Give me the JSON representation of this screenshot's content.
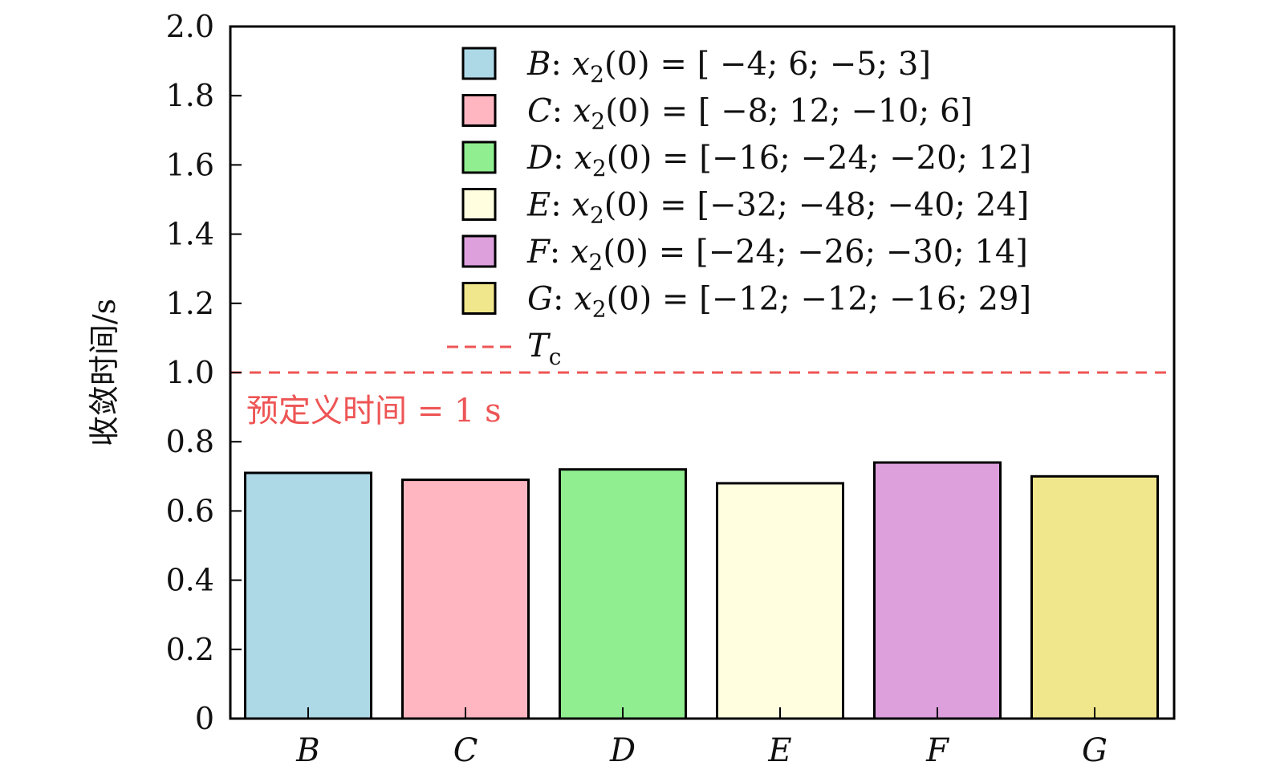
{
  "chart_data": {
    "type": "bar",
    "ylabel": "收敛时间/s",
    "xlabel": "",
    "ylim": [
      0,
      2.0
    ],
    "yticks": [
      "0",
      "0.2",
      "0.4",
      "0.6",
      "0.8",
      "1.0",
      "1.2",
      "1.4",
      "1.6",
      "1.8",
      "2.0"
    ],
    "categories": [
      "B",
      "C",
      "D",
      "E",
      "F",
      "G"
    ],
    "values": [
      0.71,
      0.69,
      0.72,
      0.68,
      0.74,
      0.7
    ],
    "colors": [
      "#add8e6",
      "#ffb6c1",
      "#90ee90",
      "#ffffe0",
      "#dda0dd",
      "#f0e68c"
    ],
    "legend": {
      "placement": "top-right",
      "entries": [
        {
          "name": "B",
          "expr": "x",
          "sub": "2",
          "arg": "(0) = ",
          "vector": "[ −4; 6; −5; 3]"
        },
        {
          "name": "C",
          "expr": "x",
          "sub": "2",
          "arg": "(0) = ",
          "vector": "[ −8; 12; −10; 6]"
        },
        {
          "name": "D",
          "expr": "x",
          "sub": "2",
          "arg": "(0) = ",
          "vector": "[−16; −24; −20; 12]"
        },
        {
          "name": "E",
          "expr": "x",
          "sub": "2",
          "arg": "(0) = ",
          "vector": "[−32; −48; −40; 24]"
        },
        {
          "name": "F",
          "expr": "x",
          "sub": "2",
          "arg": "(0) = ",
          "vector": "[−24; −26; −30; 14]"
        },
        {
          "name": "G",
          "expr": "x",
          "sub": "2",
          "arg": "(0) = ",
          "vector": "[−12; −12; −16; 29]"
        }
      ],
      "line_entry": {
        "name": "T",
        "sub": "c"
      }
    },
    "reference_line": {
      "y": 1.0,
      "color": "#ee5555",
      "style": "dashed"
    },
    "annotation": "预定义时间 = 1 s",
    "grid": false
  }
}
